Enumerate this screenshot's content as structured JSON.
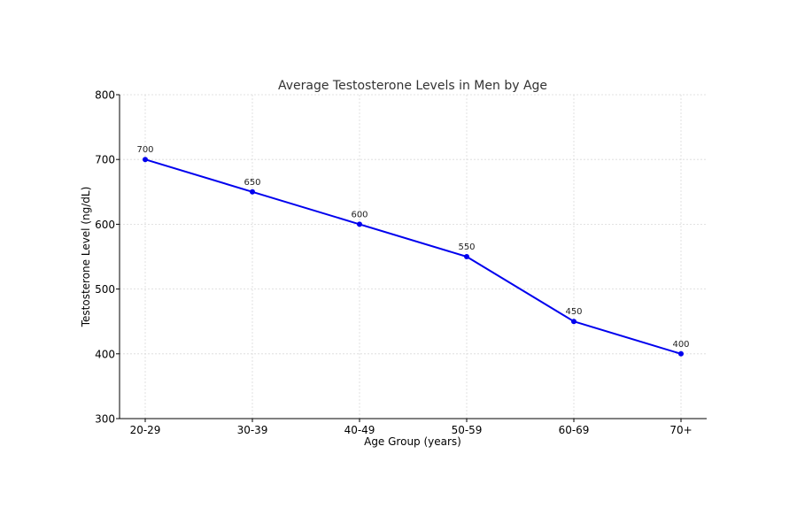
{
  "chart_data": {
    "type": "line",
    "title": "Average Testosterone Levels in Men by Age",
    "xlabel": "Age Group (years)",
    "ylabel": "Testosterone Level (ng/dL)",
    "categories": [
      "20-29",
      "30-39",
      "40-49",
      "50-59",
      "60-69",
      "70+"
    ],
    "series": [
      {
        "values": [
          700,
          650,
          600,
          550,
          450,
          400
        ],
        "color": "#0000ee"
      }
    ],
    "data_labels": [
      "700",
      "650",
      "600",
      "550",
      "450",
      "400"
    ],
    "ylim": [
      300,
      800
    ],
    "yticks": [
      300,
      400,
      500,
      600,
      700,
      800
    ],
    "ytick_labels": [
      "300",
      "400",
      "500",
      "600",
      "700",
      "800"
    ],
    "grid": true,
    "marker": "circle"
  }
}
